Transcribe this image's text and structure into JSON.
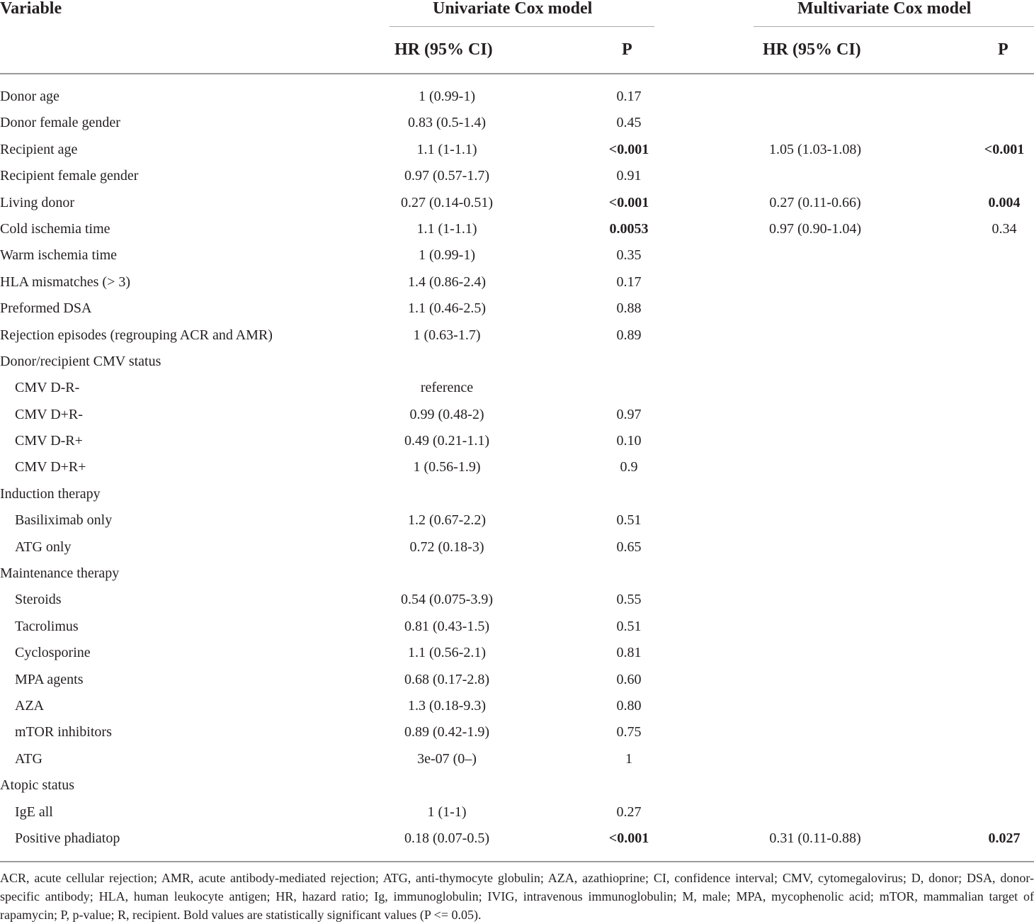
{
  "header": {
    "variable": "Variable",
    "univariate": "Univariate Cox model",
    "multivariate": "Multivariate Cox model",
    "hr_ci": "HR (95% CI)",
    "p": "P"
  },
  "rows": [
    {
      "variable": "Donor age",
      "indent": false,
      "uni_hr": "1 (0.99-1)",
      "uni_p": "0.17",
      "uni_p_bold": false,
      "multi_hr": "",
      "multi_p": "",
      "multi_p_bold": false
    },
    {
      "variable": "Donor female gender",
      "indent": false,
      "uni_hr": "0.83 (0.5-1.4)",
      "uni_p": "0.45",
      "uni_p_bold": false,
      "multi_hr": "",
      "multi_p": "",
      "multi_p_bold": false
    },
    {
      "variable": "Recipient age",
      "indent": false,
      "uni_hr": "1.1 (1-1.1)",
      "uni_p": "<0.001",
      "uni_p_bold": true,
      "multi_hr": "1.05 (1.03-1.08)",
      "multi_p": "<0.001",
      "multi_p_bold": true
    },
    {
      "variable": "Recipient female gender",
      "indent": false,
      "uni_hr": "0.97 (0.57-1.7)",
      "uni_p": "0.91",
      "uni_p_bold": false,
      "multi_hr": "",
      "multi_p": "",
      "multi_p_bold": false
    },
    {
      "variable": "Living donor",
      "indent": false,
      "uni_hr": "0.27 (0.14-0.51)",
      "uni_p": "<0.001",
      "uni_p_bold": true,
      "multi_hr": "0.27 (0.11-0.66)",
      "multi_p": "0.004",
      "multi_p_bold": true
    },
    {
      "variable": "Cold ischemia time",
      "indent": false,
      "uni_hr": "1.1 (1-1.1)",
      "uni_p": "0.0053",
      "uni_p_bold": true,
      "multi_hr": "0.97 (0.90-1.04)",
      "multi_p": "0.34",
      "multi_p_bold": false
    },
    {
      "variable": "Warm ischemia time",
      "indent": false,
      "uni_hr": "1 (0.99-1)",
      "uni_p": "0.35",
      "uni_p_bold": false,
      "multi_hr": "",
      "multi_p": "",
      "multi_p_bold": false
    },
    {
      "variable": "HLA mismatches (> 3)",
      "indent": false,
      "uni_hr": "1.4 (0.86-2.4)",
      "uni_p": "0.17",
      "uni_p_bold": false,
      "multi_hr": "",
      "multi_p": "",
      "multi_p_bold": false
    },
    {
      "variable": "Preformed DSA",
      "indent": false,
      "uni_hr": "1.1 (0.46-2.5)",
      "uni_p": "0.88",
      "uni_p_bold": false,
      "multi_hr": "",
      "multi_p": "",
      "multi_p_bold": false
    },
    {
      "variable": "Rejection episodes (regrouping ACR and AMR)",
      "indent": false,
      "uni_hr": "1 (0.63-1.7)",
      "uni_p": "0.89",
      "uni_p_bold": false,
      "multi_hr": "",
      "multi_p": "",
      "multi_p_bold": false
    },
    {
      "variable": "Donor/recipient CMV status",
      "indent": false,
      "uni_hr": "",
      "uni_p": "",
      "uni_p_bold": false,
      "multi_hr": "",
      "multi_p": "",
      "multi_p_bold": false
    },
    {
      "variable": "CMV D-R-",
      "indent": true,
      "uni_hr": "reference",
      "uni_p": "",
      "uni_p_bold": false,
      "multi_hr": "",
      "multi_p": "",
      "multi_p_bold": false
    },
    {
      "variable": "CMV D+R-",
      "indent": true,
      "uni_hr": "0.99 (0.48-2)",
      "uni_p": "0.97",
      "uni_p_bold": false,
      "multi_hr": "",
      "multi_p": "",
      "multi_p_bold": false
    },
    {
      "variable": "CMV D-R+",
      "indent": true,
      "uni_hr": "0.49 (0.21-1.1)",
      "uni_p": "0.10",
      "uni_p_bold": false,
      "multi_hr": "",
      "multi_p": "",
      "multi_p_bold": false
    },
    {
      "variable": "CMV D+R+",
      "indent": true,
      "uni_hr": "1 (0.56-1.9)",
      "uni_p": "0.9",
      "uni_p_bold": false,
      "multi_hr": "",
      "multi_p": "",
      "multi_p_bold": false
    },
    {
      "variable": "Induction therapy",
      "indent": false,
      "uni_hr": "",
      "uni_p": "",
      "uni_p_bold": false,
      "multi_hr": "",
      "multi_p": "",
      "multi_p_bold": false
    },
    {
      "variable": "Basiliximab only",
      "indent": true,
      "uni_hr": "1.2 (0.67-2.2)",
      "uni_p": "0.51",
      "uni_p_bold": false,
      "multi_hr": "",
      "multi_p": "",
      "multi_p_bold": false
    },
    {
      "variable": "ATG only",
      "indent": true,
      "uni_hr": "0.72 (0.18-3)",
      "uni_p": "0.65",
      "uni_p_bold": false,
      "multi_hr": "",
      "multi_p": "",
      "multi_p_bold": false
    },
    {
      "variable": "Maintenance therapy",
      "indent": false,
      "uni_hr": "",
      "uni_p": "",
      "uni_p_bold": false,
      "multi_hr": "",
      "multi_p": "",
      "multi_p_bold": false
    },
    {
      "variable": "Steroids",
      "indent": true,
      "uni_hr": "0.54 (0.075-3.9)",
      "uni_p": "0.55",
      "uni_p_bold": false,
      "multi_hr": "",
      "multi_p": "",
      "multi_p_bold": false
    },
    {
      "variable": "Tacrolimus",
      "indent": true,
      "uni_hr": "0.81 (0.43-1.5)",
      "uni_p": "0.51",
      "uni_p_bold": false,
      "multi_hr": "",
      "multi_p": "",
      "multi_p_bold": false
    },
    {
      "variable": "Cyclosporine",
      "indent": true,
      "uni_hr": "1.1 (0.56-2.1)",
      "uni_p": "0.81",
      "uni_p_bold": false,
      "multi_hr": "",
      "multi_p": "",
      "multi_p_bold": false
    },
    {
      "variable": "MPA agents",
      "indent": true,
      "uni_hr": "0.68 (0.17-2.8)",
      "uni_p": "0.60",
      "uni_p_bold": false,
      "multi_hr": "",
      "multi_p": "",
      "multi_p_bold": false
    },
    {
      "variable": "AZA",
      "indent": true,
      "uni_hr": "1.3 (0.18-9.3)",
      "uni_p": "0.80",
      "uni_p_bold": false,
      "multi_hr": "",
      "multi_p": "",
      "multi_p_bold": false
    },
    {
      "variable": "mTOR inhibitors",
      "indent": true,
      "uni_hr": "0.89 (0.42-1.9)",
      "uni_p": "0.75",
      "uni_p_bold": false,
      "multi_hr": "",
      "multi_p": "",
      "multi_p_bold": false
    },
    {
      "variable": "ATG",
      "indent": true,
      "uni_hr": "3e-07 (0–)",
      "uni_p": "1",
      "uni_p_bold": false,
      "multi_hr": "",
      "multi_p": "",
      "multi_p_bold": false
    },
    {
      "variable": "Atopic status",
      "indent": false,
      "uni_hr": "",
      "uni_p": "",
      "uni_p_bold": false,
      "multi_hr": "",
      "multi_p": "",
      "multi_p_bold": false
    },
    {
      "variable": "IgE all",
      "indent": true,
      "uni_hr": "1 (1-1)",
      "uni_p": "0.27",
      "uni_p_bold": false,
      "multi_hr": "",
      "multi_p": "",
      "multi_p_bold": false
    },
    {
      "variable": "Positive phadiatop",
      "indent": true,
      "uni_hr": "0.18 (0.07-0.5)",
      "uni_p": "<0.001",
      "uni_p_bold": true,
      "multi_hr": "0.31 (0.11-0.88)",
      "multi_p": "0.027",
      "multi_p_bold": true
    }
  ],
  "footnote": "ACR, acute cellular rejection; AMR, acute antibody-mediated rejection; ATG, anti-thymocyte globulin; AZA, azathioprine; CI, confidence interval; CMV, cytomegalovirus; D, donor; DSA, donor-specific antibody; HLA, human leukocyte antigen; HR, hazard ratio; Ig, immunoglobulin; IVIG, intravenous immunoglobulin; M, male; MPA, mycophenolic acid; mTOR, mammalian target of rapamycin; P, p-value; R, recipient. Bold values are statistically significant values (P <= 0.05)."
}
